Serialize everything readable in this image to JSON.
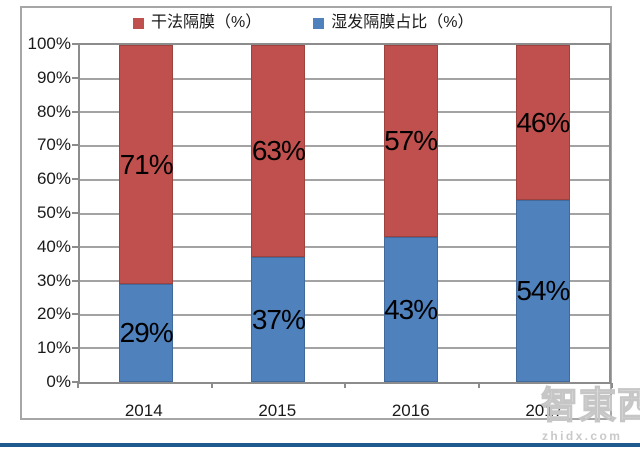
{
  "watermark": {
    "logo": "智東西",
    "domain": "zhidx.com",
    "color": "#c6c6c6"
  },
  "footer": {
    "accent_color": "#1e5a8e"
  },
  "chart_data": {
    "type": "bar",
    "stacked": true,
    "stacked_to_100_percent": true,
    "title": "",
    "xlabel": "",
    "ylabel": "",
    "categories": [
      "2014",
      "2015",
      "2016",
      "2017"
    ],
    "series": [
      {
        "name": "湿发隔膜占比（%）",
        "color": "#4f81bd",
        "border_color": "#41699b",
        "stack_position": "bottom",
        "values": [
          29,
          37,
          43,
          54
        ],
        "data_labels": [
          "29%",
          "37%",
          "43%",
          "54%"
        ]
      },
      {
        "name": "干法隔膜（%）",
        "color": "#c0504d",
        "border_color": "#9e4240",
        "stack_position": "top",
        "values": [
          71,
          63,
          57,
          46
        ],
        "data_labels": [
          "71%",
          "63%",
          "57%",
          "46%"
        ]
      }
    ],
    "legend": [
      {
        "label": "干法隔膜（%）",
        "color": "#c0504d"
      },
      {
        "label": "湿发隔膜占比（%）",
        "color": "#4f81bd"
      }
    ],
    "legend_position": "top",
    "y_ticks": [
      "100%",
      "90%",
      "80%",
      "70%",
      "60%",
      "50%",
      "40%",
      "30%",
      "20%",
      "10%",
      "0%"
    ],
    "ylim": [
      0,
      100
    ],
    "y_step": 10,
    "grid": true,
    "grid_direction": "horizontal"
  }
}
